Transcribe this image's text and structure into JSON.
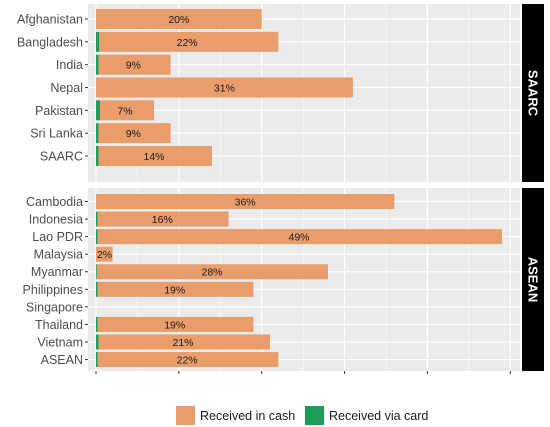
{
  "chart_data": {
    "type": "bar",
    "orientation": "horizontal",
    "stacked": true,
    "grid": true,
    "legend_position": "bottom",
    "xlim": [
      0,
      52
    ],
    "colors": {
      "cash": "#E99D6B",
      "card": "#1E9C5A",
      "panel": "#EBEBEB",
      "grid": "#FFFFFF",
      "strip": "#000000"
    },
    "legend": [
      {
        "key": "cash",
        "label": "Received in cash"
      },
      {
        "key": "card",
        "label": "Received via card"
      }
    ],
    "panels": [
      {
        "name": "SAARC",
        "categories": [
          "Afghanistan",
          "Bangladesh",
          "India",
          "Nepal",
          "Pakistan",
          "Sri Lanka",
          "SAARC"
        ],
        "labels": [
          "20%",
          "22%",
          "9%",
          "31%",
          "7%",
          "9%",
          "14%"
        ],
        "series": [
          {
            "key": "card",
            "values": [
              0,
              0.4,
              0.3,
              0,
              0.5,
              0.3,
              0.3
            ]
          },
          {
            "key": "cash",
            "values": [
              20,
              21.6,
              8.7,
              31,
              6.5,
              8.7,
              13.7
            ]
          }
        ]
      },
      {
        "name": "ASEAN",
        "categories": [
          "Cambodia",
          "Indonesia",
          "Lao PDR",
          "Malaysia",
          "Myanmar",
          "Philippines",
          "Singapore",
          "Thailand",
          "Vietnam",
          "ASEAN"
        ],
        "labels": [
          "36%",
          "16%",
          "49%",
          "2%",
          "28%",
          "19%",
          "",
          "19%",
          "21%",
          "22%"
        ],
        "series": [
          {
            "key": "card",
            "values": [
              0,
              0.2,
              0.2,
              0,
              0.1,
              0.2,
              0,
              0.2,
              0.3,
              0.2
            ]
          },
          {
            "key": "cash",
            "values": [
              36,
              15.8,
              48.8,
              2,
              27.9,
              18.8,
              0,
              18.8,
              20.7,
              21.8
            ]
          }
        ]
      }
    ]
  }
}
